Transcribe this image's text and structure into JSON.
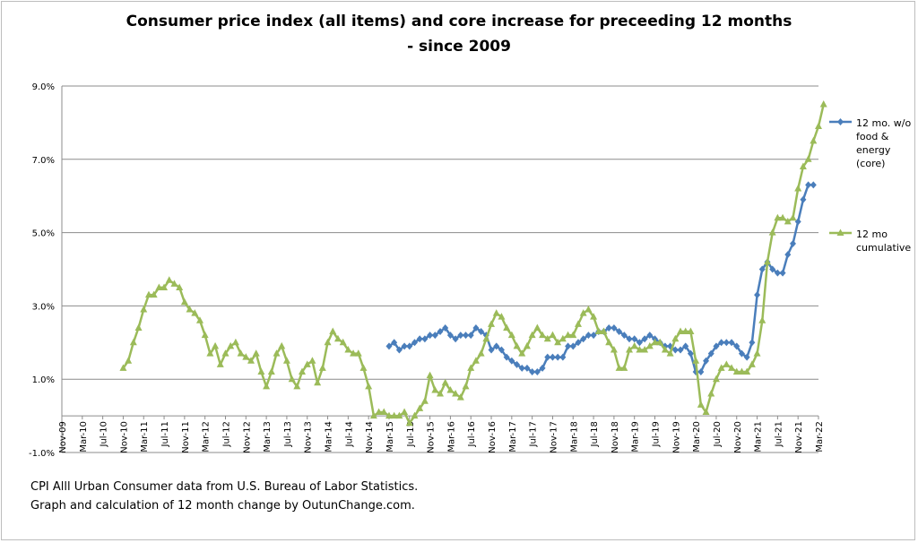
{
  "chart_data": {
    "type": "line",
    "title": "Consumer price index (all items) and core increase for preceeding 12 months",
    "subtitle": "- since 2009",
    "ylim": [
      -1.0,
      9.0
    ],
    "y_ticks": [
      "-1.0%",
      "1.0%",
      "3.0%",
      "5.0%",
      "7.0%",
      "9.0%"
    ],
    "y_tick_values": [
      -1,
      1,
      3,
      5,
      7,
      9
    ],
    "x_tick_labels": [
      "Nov-09",
      "Mar-10",
      "Jul-10",
      "Nov-10",
      "Mar-11",
      "Jul-11",
      "Nov-11",
      "Mar-12",
      "Jul-12",
      "Nov-12",
      "Mar-13",
      "Jul-13",
      "Nov-13",
      "Mar-14",
      "Jul-14",
      "Nov-14",
      "Mar-15",
      "Jul-15",
      "Nov-15",
      "Mar-16",
      "Jul-16",
      "Nov-16",
      "Mar-17",
      "Jul-17",
      "Nov-17",
      "Mar-18",
      "Jul-18",
      "Nov-18",
      "Mar-19",
      "Jul-19",
      "Nov-19",
      "Mar-20",
      "Jul-20",
      "Nov-20",
      "Mar-21",
      "Jul-21",
      "Nov-21",
      "Mar-22"
    ],
    "grid": true,
    "legend_position": "right",
    "series": [
      {
        "name": "12 mo. w/o food & energy (core)",
        "legend_lines": [
          "12 mo. w/o",
          "food &",
          "energy",
          "(core)"
        ],
        "color": "#4a7ebb",
        "marker": "diamond",
        "start_index": 64,
        "values": [
          1.9,
          2.0,
          1.8,
          1.9,
          1.9,
          2.0,
          2.1,
          2.1,
          2.2,
          2.2,
          2.3,
          2.4,
          2.2,
          2.1,
          2.2,
          2.2,
          2.2,
          2.4,
          2.3,
          2.2,
          1.8,
          1.9,
          1.8,
          1.6,
          1.5,
          1.4,
          1.3,
          1.3,
          1.2,
          1.2,
          1.3,
          1.6,
          1.6,
          1.6,
          1.6,
          1.9,
          1.9,
          2.0,
          2.1,
          2.2,
          2.2,
          2.3,
          2.3,
          2.4,
          2.4,
          2.3,
          2.2,
          2.1,
          2.1,
          2.0,
          2.1,
          2.2,
          2.1,
          2.0,
          1.9,
          1.9,
          1.8,
          1.8,
          1.9,
          1.7,
          1.2,
          1.2,
          1.5,
          1.7,
          1.9,
          2.0,
          2.0,
          2.0,
          1.9,
          1.7,
          1.6,
          2.0,
          3.3,
          4.0,
          4.2,
          4.0,
          3.9,
          3.9,
          4.4,
          4.7,
          5.3,
          5.9,
          6.3,
          6.3
        ]
      },
      {
        "name": "12 mo cumulative",
        "legend_lines": [
          "12 mo",
          "cumulative"
        ],
        "color": "#9bbb59",
        "marker": "triangle",
        "start_index": 12,
        "values": [
          1.3,
          1.5,
          2.0,
          2.4,
          2.9,
          3.3,
          3.3,
          3.5,
          3.5,
          3.7,
          3.6,
          3.5,
          3.1,
          2.9,
          2.8,
          2.6,
          2.2,
          1.7,
          1.9,
          1.4,
          1.7,
          1.9,
          2.0,
          1.7,
          1.6,
          1.5,
          1.7,
          1.2,
          0.8,
          1.2,
          1.7,
          1.9,
          1.5,
          1.0,
          0.8,
          1.2,
          1.4,
          1.5,
          0.9,
          1.3,
          2.0,
          2.3,
          2.1,
          2.0,
          1.8,
          1.7,
          1.7,
          1.3,
          0.8,
          0.0,
          0.1,
          0.1,
          0.0,
          0.0,
          0.0,
          0.1,
          -0.2,
          0.0,
          0.2,
          0.4,
          1.1,
          0.7,
          0.6,
          0.9,
          0.7,
          0.6,
          0.5,
          0.8,
          1.3,
          1.5,
          1.7,
          2.1,
          2.5,
          2.8,
          2.7,
          2.4,
          2.2,
          1.9,
          1.7,
          1.9,
          2.2,
          2.4,
          2.2,
          2.1,
          2.2,
          2.0,
          2.1,
          2.2,
          2.2,
          2.5,
          2.8,
          2.9,
          2.7,
          2.3,
          2.3,
          2.0,
          1.8,
          1.3,
          1.3,
          1.8,
          1.9,
          1.8,
          1.8,
          1.9,
          2.0,
          2.0,
          1.8,
          1.7,
          2.1,
          2.3,
          2.3,
          2.3,
          1.5,
          0.3,
          0.1,
          0.6,
          1.0,
          1.3,
          1.4,
          1.3,
          1.2,
          1.2,
          1.2,
          1.4,
          1.7,
          2.6,
          4.2,
          5.0,
          5.4,
          5.4,
          5.3,
          5.4,
          6.2,
          6.8,
          7.0,
          7.5,
          7.9,
          8.5
        ]
      }
    ]
  },
  "source_lines": [
    "CPI Alll Urban Consumer data from U.S. Bureau of Labor Statistics.",
    "Graph and calculation of 12 month change by OutunChange.com."
  ]
}
